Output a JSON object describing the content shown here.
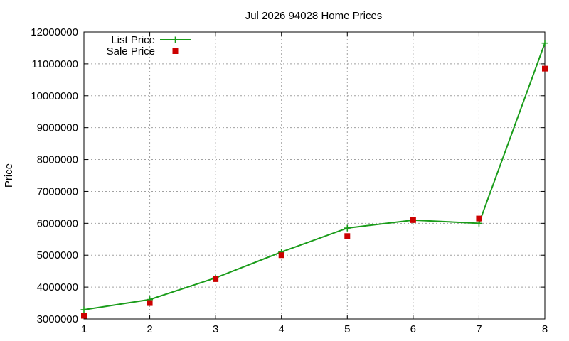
{
  "chart_data": {
    "type": "line",
    "title": "Jul 2026 94028 Home Prices",
    "xlabel": "",
    "ylabel": "Price",
    "x": [
      1,
      2,
      3,
      4,
      5,
      6,
      7,
      8
    ],
    "xlim": [
      1,
      8
    ],
    "ylim": [
      3000000,
      12000000
    ],
    "xticks": [
      "1",
      "2",
      "3",
      "4",
      "5",
      "6",
      "7",
      "8"
    ],
    "yticks": [
      "3000000",
      "4000000",
      "5000000",
      "6000000",
      "7000000",
      "8000000",
      "9000000",
      "10000000",
      "11000000",
      "12000000"
    ],
    "grid": true,
    "legend_position": "top-left",
    "series": [
      {
        "name": "List Price",
        "style": "line-with-plus-markers",
        "color": "#1a9c1a",
        "values": [
          3290000,
          3610000,
          4290000,
          5100000,
          5850000,
          6100000,
          6000000,
          11650000
        ]
      },
      {
        "name": "Sale Price",
        "style": "square-markers",
        "color": "#cc0000",
        "values": [
          3100000,
          3500000,
          4250000,
          5000000,
          5600000,
          6100000,
          6150000,
          10850000
        ]
      }
    ]
  }
}
